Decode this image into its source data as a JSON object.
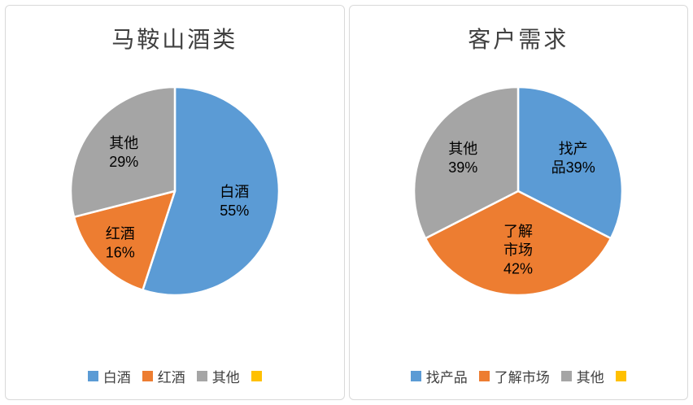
{
  "chart_data": [
    {
      "type": "pie",
      "title": "马鞍山酒类",
      "labels": [
        "白酒",
        "红酒",
        "其他"
      ],
      "values": [
        55,
        16,
        29
      ],
      "unit": "%",
      "colors": [
        "#5B9BD5",
        "#ED7D31",
        "#A5A5A5"
      ],
      "slice_label_lines": [
        [
          "白酒",
          "55%"
        ],
        [
          "红酒",
          "16%"
        ],
        [
          "其他",
          "29%"
        ]
      ],
      "label_r": [
        0.58,
        0.72,
        0.62
      ],
      "start_angle_deg": 0,
      "direction": "clockwise",
      "legend_position": "bottom",
      "legend": [
        {
          "label": "白酒",
          "color": "#5B9BD5"
        },
        {
          "label": "红酒",
          "color": "#ED7D31"
        },
        {
          "label": "其他",
          "color": "#A5A5A5"
        },
        {
          "label": "",
          "color": "#FFC000"
        }
      ]
    },
    {
      "type": "pie",
      "title": "客户需求",
      "labels": [
        "找产品",
        "了解市场",
        "其他"
      ],
      "values": [
        39,
        42,
        39
      ],
      "unit": "%",
      "colors": [
        "#5B9BD5",
        "#ED7D31",
        "#A5A5A5"
      ],
      "slice_label_lines": [
        [
          "找产",
          "品39%"
        ],
        [
          "了解",
          "市场",
          "42%"
        ],
        [
          "其他",
          "39%"
        ]
      ],
      "label_r": [
        0.62,
        0.56,
        0.62
      ],
      "start_angle_deg": 0,
      "direction": "clockwise",
      "legend_position": "bottom",
      "legend": [
        {
          "label": "找产品",
          "color": "#5B9BD5"
        },
        {
          "label": "了解市场",
          "color": "#ED7D31"
        },
        {
          "label": "其他",
          "color": "#A5A5A5"
        },
        {
          "label": "",
          "color": "#FFC000"
        }
      ]
    }
  ]
}
